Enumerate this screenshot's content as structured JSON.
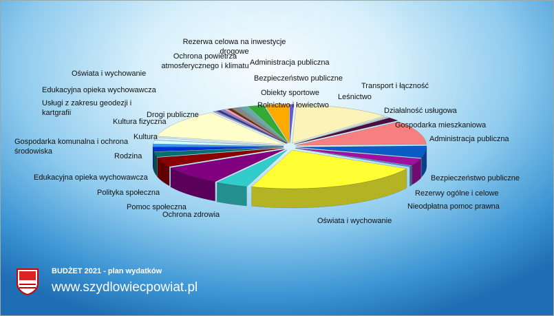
{
  "chart_data": {
    "type": "pie",
    "categories": [
      "Leśnictwo",
      "Transport i łączność",
      "Działalność usługowa",
      "Gospodarka mieszkaniowa",
      "Administracja publiczna",
      "Bezpieczeństwo publiczne",
      "Rezerwy ogólne i celowe",
      "Nieodpłatna pomoc prawna",
      "Oświata i wychowanie",
      "Ochrona zdrowia",
      "Pomoc społeczna",
      "Polityka społeczna",
      "Edukacyjna opieka wychowawcza",
      "Rodzina",
      "Gospodarka komunalna i ochrona środowiska",
      "Kultura",
      "Kultura fizyczna",
      "Drogi publiczne",
      "Usługi z zakresu geodezji i kartgrafii",
      "Edukacyjna opieka wychowawcza",
      "Oświata i wychowanie",
      "Ochrona powietrza atmosferycznego i klimatu",
      "Rezerwa celowa na inwestycje drogowe",
      "Administracja publiczna",
      "Bezpieczeństwo publiczne",
      "Obiekty sportowe",
      "Rolnictwo i łowiectwo"
    ],
    "values": [
      0.5,
      12,
      0.5,
      1.5,
      10,
      5,
      3,
      0.5,
      22,
      4,
      8,
      4,
      2,
      2,
      1,
      1.5,
      1,
      12,
      0.5,
      0.5,
      0.5,
      0.5,
      0.5,
      1,
      1,
      2,
      3
    ],
    "colors": [
      "#6a5acd",
      "#fbf3b8",
      "#c8c8c8",
      "#4b0f3f",
      "#f77f7f",
      "#0c5cc7",
      "#a010a0",
      "#5588cc",
      "#ffff33",
      "#33cccc",
      "#800080",
      "#8b0000",
      "#007070",
      "#0033cc",
      "#3399ff",
      "#ccffff",
      "#ddeeff",
      "#ffffcc",
      "#9999cc",
      "#333399",
      "#8888bb",
      "#ff99cc",
      "#663300",
      "#888888",
      "#66aaaa",
      "#33aa33",
      "#ffaa00"
    ]
  },
  "footer": {
    "heading": "BUDŻET 2021 - plan wydatków",
    "url": "www.szydlowiecpowiat.pl"
  }
}
